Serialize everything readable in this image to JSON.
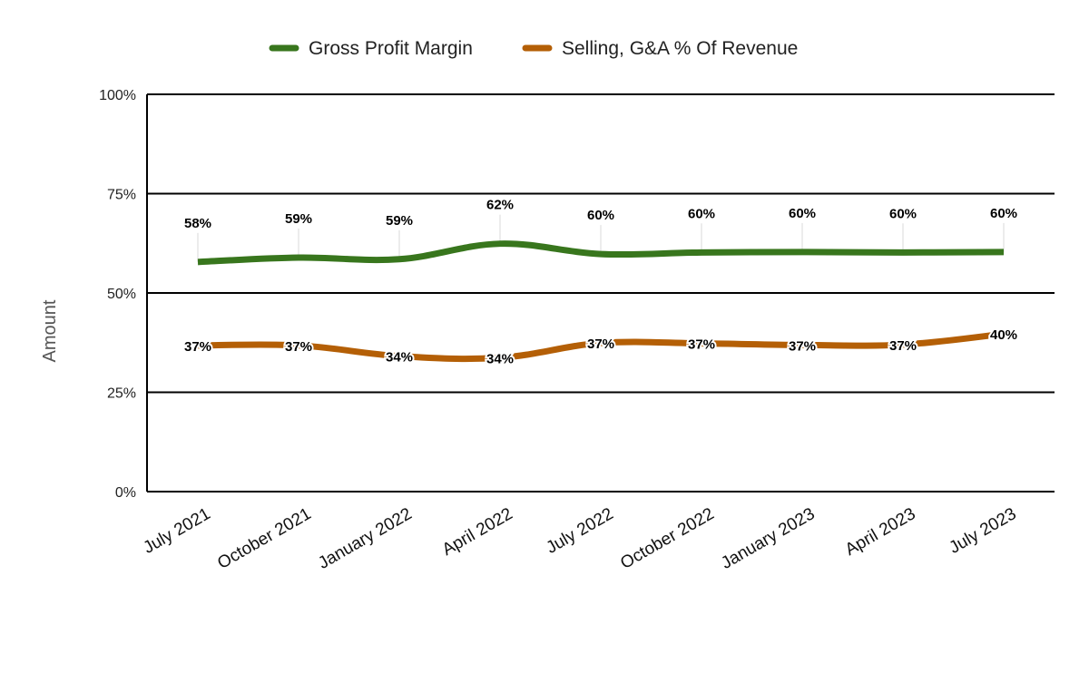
{
  "chart_data": {
    "type": "line",
    "title": "",
    "xlabel": "",
    "ylabel": "Amount",
    "ylim": [
      0,
      100
    ],
    "yticks": [
      "0%",
      "25%",
      "50%",
      "75%",
      "100%"
    ],
    "grid": true,
    "legend_position": "top",
    "categories": [
      "July 2021",
      "October 2021",
      "January 2022",
      "April 2022",
      "July 2022",
      "October 2022",
      "January 2023",
      "April 2023",
      "July 2023"
    ],
    "series": [
      {
        "name": "Gross Profit Margin",
        "color": "#38761d",
        "values": [
          57.8,
          58.9,
          58.5,
          62.4,
          59.8,
          60.2,
          60.3,
          60.2,
          60.3
        ],
        "labels": [
          "58%",
          "59%",
          "59%",
          "62%",
          "60%",
          "60%",
          "60%",
          "60%",
          "60%"
        ]
      },
      {
        "name": "Selling, G&A % Of Revenue",
        "color": "#b45f06",
        "values": [
          36.8,
          36.8,
          34.1,
          33.7,
          37.4,
          37.3,
          36.9,
          37.0,
          39.7
        ],
        "labels": [
          "37%",
          "37%",
          "34%",
          "34%",
          "37%",
          "37%",
          "37%",
          "37%",
          "40%"
        ]
      }
    ]
  }
}
